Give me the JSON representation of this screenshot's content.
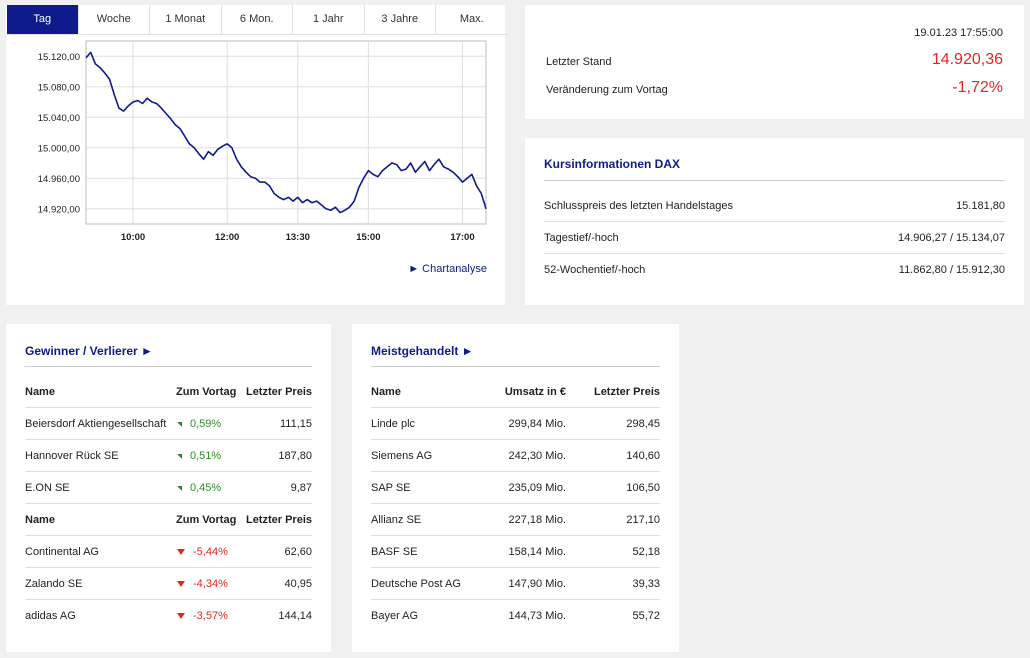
{
  "tabs": [
    "Tag",
    "Woche",
    "1 Monat",
    "6 Mon.",
    "1 Jahr",
    "3 Jahre",
    "Max."
  ],
  "active_tab": "Tag",
  "chart_link": "► Chartanalyse",
  "chart_data": {
    "type": "line",
    "y_ticks": [
      "15.120,00",
      "15.080,00",
      "15.040,00",
      "15.000,00",
      "14.960,00",
      "14.920,00"
    ],
    "x_ticks": [
      "10:00",
      "12:00",
      "13:30",
      "15:00",
      "17:00"
    ],
    "ylim": [
      14900,
      15140
    ],
    "grid": true,
    "color": "#0f1b8a",
    "series": [
      {
        "x": [
          "09:00",
          "09:06",
          "09:12",
          "09:18",
          "09:24",
          "09:30",
          "09:36",
          "09:42",
          "09:48",
          "09:54",
          "10:00",
          "10:06",
          "10:12",
          "10:18",
          "10:24",
          "10:30",
          "10:36",
          "10:42",
          "10:48",
          "10:54",
          "11:00",
          "11:06",
          "11:12",
          "11:18",
          "11:24",
          "11:30",
          "11:36",
          "11:42",
          "11:48",
          "11:54",
          "12:00",
          "12:06",
          "12:12",
          "12:18",
          "12:24",
          "12:30",
          "12:36",
          "12:42",
          "12:48",
          "12:54",
          "13:00",
          "13:06",
          "13:12",
          "13:18",
          "13:24",
          "13:30",
          "13:36",
          "13:42",
          "13:48",
          "13:54",
          "14:00",
          "14:06",
          "14:12",
          "14:18",
          "14:24",
          "14:30",
          "14:36",
          "14:42",
          "14:48",
          "14:54",
          "15:00",
          "15:06",
          "15:12",
          "15:18",
          "15:24",
          "15:30",
          "15:36",
          "15:42",
          "15:48",
          "15:54",
          "16:00",
          "16:06",
          "16:12",
          "16:18",
          "16:24",
          "16:30",
          "16:36",
          "16:42",
          "16:48",
          "16:54",
          "17:00",
          "17:06",
          "17:12",
          "17:18",
          "17:24",
          "17:30"
        ],
        "y": [
          15118,
          15125,
          15110,
          15105,
          15098,
          15090,
          15070,
          15052,
          15048,
          15055,
          15060,
          15062,
          15058,
          15065,
          15060,
          15058,
          15052,
          15045,
          15038,
          15030,
          15025,
          15015,
          15005,
          15000,
          14992,
          14985,
          14995,
          14990,
          14998,
          15002,
          15005,
          15000,
          14985,
          14975,
          14968,
          14962,
          14960,
          14955,
          14955,
          14950,
          14940,
          14935,
          14932,
          14935,
          14930,
          14935,
          14928,
          14932,
          14928,
          14930,
          14925,
          14920,
          14918,
          14922,
          14915,
          14918,
          14922,
          14930,
          14948,
          14960,
          14970,
          14965,
          14962,
          14970,
          14975,
          14980,
          14978,
          14970,
          14972,
          14980,
          14968,
          14975,
          14982,
          14970,
          14978,
          14985,
          14975,
          14972,
          14968,
          14962,
          14955,
          14960,
          14965,
          14950,
          14940,
          14920
        ]
      }
    ]
  },
  "quote": {
    "timestamp": "19.01.23 17:55:00",
    "last_label": "Letzter Stand",
    "last_value": "14.920,36",
    "change_label": "Veränderung zum Vortag",
    "change_value": "-1,72%"
  },
  "info": {
    "title": "Kursinformationen DAX",
    "rows": [
      {
        "label": "Schlusspreis des letzten Handelstages",
        "value": "15.181,80"
      },
      {
        "label": "Tagestief/-hoch",
        "value": "14.906,27 / 15.134,07"
      },
      {
        "label": "52-Wochentief/-hoch",
        "value": "11.862,80 / 15.912,30"
      }
    ]
  },
  "gv": {
    "title": "Gewinner / Verlierer ►",
    "headers": [
      "Name",
      "Zum Vortag",
      "Letzter Preis"
    ],
    "winners": [
      {
        "name": "Beiersdorf Aktiengesellschaft",
        "change": "0,59%",
        "price": "111,15"
      },
      {
        "name": "Hannover Rück SE",
        "change": "0,51%",
        "price": "187,80"
      },
      {
        "name": "E.ON SE",
        "change": "0,45%",
        "price": "9,87"
      }
    ],
    "losers": [
      {
        "name": "Continental AG",
        "change": "-5,44%",
        "price": "62,60"
      },
      {
        "name": "Zalando SE",
        "change": "-4,34%",
        "price": "40,95"
      },
      {
        "name": "adidas AG",
        "change": "-3,57%",
        "price": "144,14"
      }
    ]
  },
  "mg": {
    "title": "Meistgehandelt ►",
    "headers": [
      "Name",
      "Umsatz in €",
      "Letzter Preis"
    ],
    "rows": [
      {
        "name": "Linde plc",
        "volume": "299,84 Mio.",
        "price": "298,45"
      },
      {
        "name": "Siemens AG",
        "volume": "242,30 Mio.",
        "price": "140,60"
      },
      {
        "name": "SAP SE",
        "volume": "235,09 Mio.",
        "price": "106,50"
      },
      {
        "name": "Allianz SE",
        "volume": "227,18 Mio.",
        "price": "217,10"
      },
      {
        "name": "BASF SE",
        "volume": "158,14 Mio.",
        "price": "52,18"
      },
      {
        "name": "Deutsche Post AG",
        "volume": "147,90 Mio.",
        "price": "39,33"
      },
      {
        "name": "Bayer AG",
        "volume": "144,73 Mio.",
        "price": "55,72"
      }
    ]
  }
}
